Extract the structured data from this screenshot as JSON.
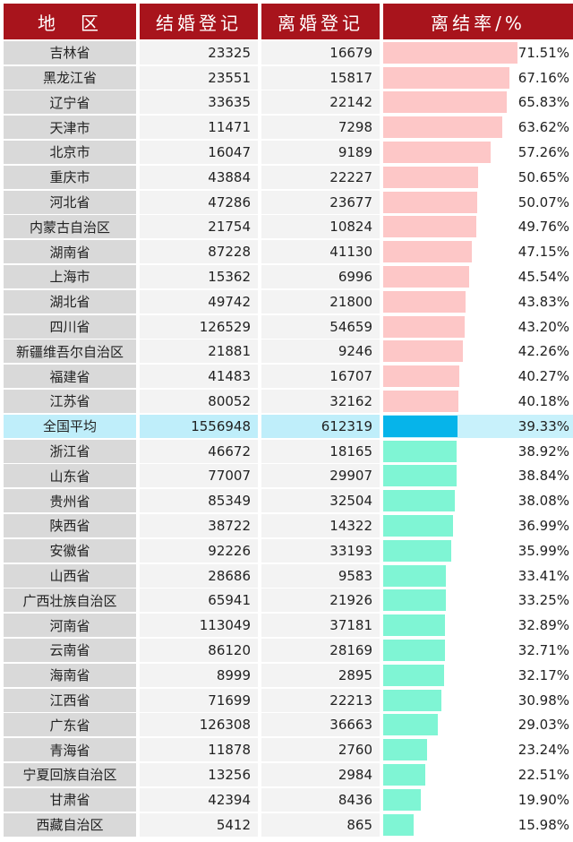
{
  "headers": {
    "region": "地　区",
    "marriage": "结婚登记",
    "divorce": "离婚登记",
    "rate": "离结率/%"
  },
  "colors": {
    "header": "#a8141c",
    "above_avg_bar": "#fdc7c7",
    "avg_bar": "#06b4ea",
    "below_avg_bar": "#7ff5d4"
  },
  "chart_data": {
    "type": "table",
    "columns": [
      "地　区",
      "结婚登记",
      "离婚登记",
      "离结率/%"
    ],
    "rows": [
      {
        "region": "吉林省",
        "marriage": 23325,
        "divorce": 16679,
        "rate": "71.51%",
        "rate_value": 71.51,
        "group": "above"
      },
      {
        "region": "黑龙江省",
        "marriage": 23551,
        "divorce": 15817,
        "rate": "67.16%",
        "rate_value": 67.16,
        "group": "above"
      },
      {
        "region": "辽宁省",
        "marriage": 33635,
        "divorce": 22142,
        "rate": "65.83%",
        "rate_value": 65.83,
        "group": "above"
      },
      {
        "region": "天津市",
        "marriage": 11471,
        "divorce": 7298,
        "rate": "63.62%",
        "rate_value": 63.62,
        "group": "above"
      },
      {
        "region": "北京市",
        "marriage": 16047,
        "divorce": 9189,
        "rate": "57.26%",
        "rate_value": 57.26,
        "group": "above"
      },
      {
        "region": "重庆市",
        "marriage": 43884,
        "divorce": 22227,
        "rate": "50.65%",
        "rate_value": 50.65,
        "group": "above"
      },
      {
        "region": "河北省",
        "marriage": 47286,
        "divorce": 23677,
        "rate": "50.07%",
        "rate_value": 50.07,
        "group": "above"
      },
      {
        "region": "内蒙古自治区",
        "marriage": 21754,
        "divorce": 10824,
        "rate": "49.76%",
        "rate_value": 49.76,
        "group": "above"
      },
      {
        "region": "湖南省",
        "marriage": 87228,
        "divorce": 41130,
        "rate": "47.15%",
        "rate_value": 47.15,
        "group": "above"
      },
      {
        "region": "上海市",
        "marriage": 15362,
        "divorce": 6996,
        "rate": "45.54%",
        "rate_value": 45.54,
        "group": "above"
      },
      {
        "region": "湖北省",
        "marriage": 49742,
        "divorce": 21800,
        "rate": "43.83%",
        "rate_value": 43.83,
        "group": "above"
      },
      {
        "region": "四川省",
        "marriage": 126529,
        "divorce": 54659,
        "rate": "43.20%",
        "rate_value": 43.2,
        "group": "above"
      },
      {
        "region": "新疆维吾尔自治区",
        "marriage": 21881,
        "divorce": 9246,
        "rate": "42.26%",
        "rate_value": 42.26,
        "group": "above"
      },
      {
        "region": "福建省",
        "marriage": 41483,
        "divorce": 16707,
        "rate": "40.27%",
        "rate_value": 40.27,
        "group": "above"
      },
      {
        "region": "江苏省",
        "marriage": 80052,
        "divorce": 32162,
        "rate": "40.18%",
        "rate_value": 40.18,
        "group": "above"
      },
      {
        "region": "全国平均",
        "marriage": 1556948,
        "divorce": 612319,
        "rate": "39.33%",
        "rate_value": 39.33,
        "group": "avg"
      },
      {
        "region": "浙江省",
        "marriage": 46672,
        "divorce": 18165,
        "rate": "38.92%",
        "rate_value": 38.92,
        "group": "below"
      },
      {
        "region": "山东省",
        "marriage": 77007,
        "divorce": 29907,
        "rate": "38.84%",
        "rate_value": 38.84,
        "group": "below"
      },
      {
        "region": "贵州省",
        "marriage": 85349,
        "divorce": 32504,
        "rate": "38.08%",
        "rate_value": 38.08,
        "group": "below"
      },
      {
        "region": "陕西省",
        "marriage": 38722,
        "divorce": 14322,
        "rate": "36.99%",
        "rate_value": 36.99,
        "group": "below"
      },
      {
        "region": "安徽省",
        "marriage": 92226,
        "divorce": 33193,
        "rate": "35.99%",
        "rate_value": 35.99,
        "group": "below"
      },
      {
        "region": "山西省",
        "marriage": 28686,
        "divorce": 9583,
        "rate": "33.41%",
        "rate_value": 33.41,
        "group": "below"
      },
      {
        "region": "广西壮族自治区",
        "marriage": 65941,
        "divorce": 21926,
        "rate": "33.25%",
        "rate_value": 33.25,
        "group": "below"
      },
      {
        "region": "河南省",
        "marriage": 113049,
        "divorce": 37181,
        "rate": "32.89%",
        "rate_value": 32.89,
        "group": "below"
      },
      {
        "region": "云南省",
        "marriage": 86120,
        "divorce": 28169,
        "rate": "32.71%",
        "rate_value": 32.71,
        "group": "below"
      },
      {
        "region": "海南省",
        "marriage": 8999,
        "divorce": 2895,
        "rate": "32.17%",
        "rate_value": 32.17,
        "group": "below"
      },
      {
        "region": "江西省",
        "marriage": 71699,
        "divorce": 22213,
        "rate": "30.98%",
        "rate_value": 30.98,
        "group": "below"
      },
      {
        "region": "广东省",
        "marriage": 126308,
        "divorce": 36663,
        "rate": "29.03%",
        "rate_value": 29.03,
        "group": "below"
      },
      {
        "region": "青海省",
        "marriage": 11878,
        "divorce": 2760,
        "rate": "23.24%",
        "rate_value": 23.24,
        "group": "below"
      },
      {
        "region": "宁夏回族自治区",
        "marriage": 13256,
        "divorce": 2984,
        "rate": "22.51%",
        "rate_value": 22.51,
        "group": "below"
      },
      {
        "region": "甘肃省",
        "marriage": 42394,
        "divorce": 8436,
        "rate": "19.90%",
        "rate_value": 19.9,
        "group": "below"
      },
      {
        "region": "西藏自治区",
        "marriage": 5412,
        "divorce": 865,
        "rate": "15.98%",
        "rate_value": 15.98,
        "group": "below"
      }
    ],
    "bar_max": 71.51
  }
}
